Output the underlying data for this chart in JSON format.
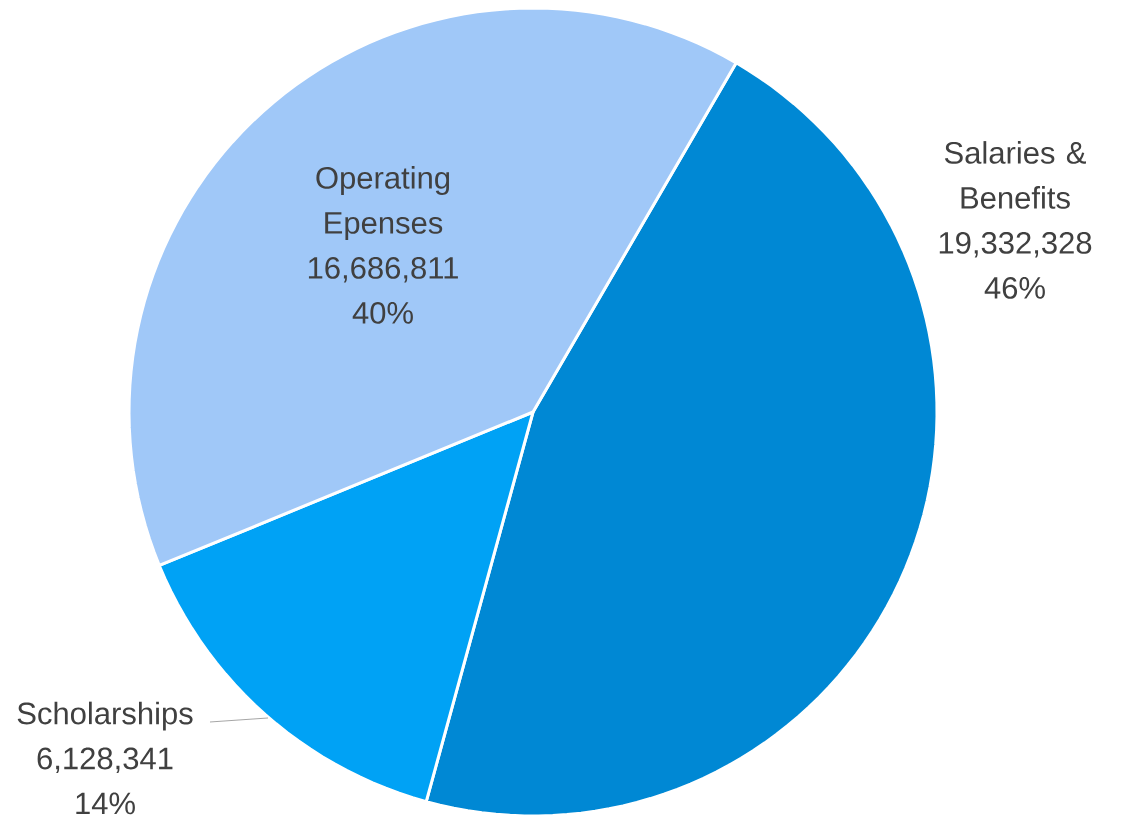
{
  "chart_data": {
    "type": "pie",
    "categories": [
      "Salaries & Benefits",
      "Scholarships",
      "Operating Epenses"
    ],
    "values": [
      19332328,
      6128341,
      16686811
    ],
    "colors": [
      "#0088d4",
      "#00a2f5",
      "#a0c8f8"
    ],
    "value_labels": [
      "19,332,328",
      "6,128,341",
      "16,686,811"
    ],
    "annotations": [
      "46%",
      "14%",
      "40%"
    ]
  }
}
